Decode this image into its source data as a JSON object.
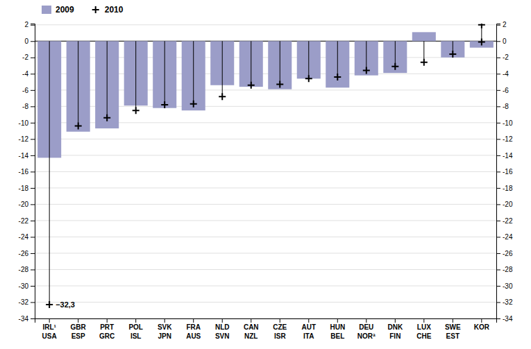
{
  "chart_data": {
    "type": "bar",
    "categories": [
      "IRL¹",
      "GBR",
      "PRT",
      "POL",
      "SVK",
      "FRA",
      "NLD",
      "CAN",
      "CZE",
      "AUT",
      "HUN",
      "DEU",
      "DNK",
      "LUX",
      "SWE",
      "KOR"
    ],
    "categories_bottom": [
      "USA",
      "ESP",
      "GRC",
      "ISL",
      "JPN",
      "AUS",
      "SVN",
      "NZL",
      "ISR",
      "ITA",
      "BEL",
      "NORª",
      "FIN",
      "CHE",
      "EST",
      null
    ],
    "series": [
      {
        "name": "2009",
        "type": "bar",
        "color": "#9B9DC8",
        "values": [
          -14.3,
          -11.1,
          -10.7,
          -7.9,
          -8.2,
          -8.5,
          -5.4,
          -5.6,
          -5.9,
          -4.6,
          -5.7,
          -4.2,
          -3.9,
          1.1,
          -2.0,
          -0.8
        ]
      },
      {
        "name": "2010",
        "type": "scatter",
        "marker": "plus",
        "color": "black",
        "values": [
          -32.3,
          -10.4,
          -9.4,
          -8.5,
          -7.8,
          -7.7,
          -6.8,
          -5.4,
          -5.3,
          -4.6,
          -4.4,
          -3.6,
          -3.1,
          -2.6,
          -1.6,
          -0.1
        ],
        "value_labels": [
          "−32,3",
          null,
          null,
          null,
          null,
          null,
          null,
          null,
          null,
          null,
          null,
          null,
          null,
          null,
          null,
          null
        ],
        "extra_points": [
          {
            "category": "KOR",
            "value": 2.0
          }
        ]
      }
    ],
    "ylim": [
      -34,
      2.15
    ],
    "yticks": [
      -34,
      -32,
      -30,
      -28,
      -26,
      -24,
      -22,
      -20,
      -18,
      -16,
      -14,
      -12,
      -10,
      -8,
      -6,
      -4,
      -2,
      0,
      2
    ],
    "y2lim": [
      -34,
      2.15
    ],
    "y2ticks": [
      -34,
      -32,
      -30,
      -28,
      -26,
      -24,
      -22,
      -20,
      -18,
      -16,
      -14,
      -12,
      -10,
      -8,
      -6,
      -4,
      -2,
      0,
      2
    ],
    "grid": true,
    "legend": "upper left"
  }
}
